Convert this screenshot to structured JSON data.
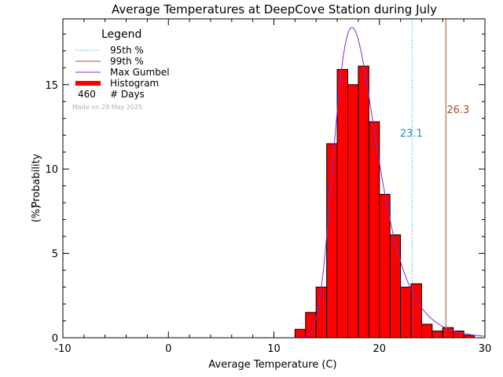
{
  "chart_data": {
    "type": "bar",
    "title": "Average Temperatures at DeepCove Station during July",
    "xlabel": "Average Temperature (C)",
    "ylabel": "Probability",
    "ylabel_unit": "(%)",
    "xlim": [
      -10,
      30
    ],
    "ylim": [
      0,
      18.9
    ],
    "xticks": [
      -10,
      0,
      10,
      20,
      30
    ],
    "yticks": [
      0,
      5,
      10,
      15
    ],
    "grid": false,
    "legend": {
      "title": "Legend",
      "position": "top-left",
      "items": [
        {
          "label": "95th %",
          "style": "dotted",
          "color": "#1f8fd6"
        },
        {
          "label": "99th %",
          "style": "solid",
          "color": "#a0522d"
        },
        {
          "label": "Max Gumbel",
          "style": "solid",
          "color": "#7b2fd0"
        },
        {
          "label": "Histogram",
          "style": "thick",
          "color": "#ff0000"
        }
      ],
      "days_count": "460",
      "days_label": "# Days"
    },
    "made_on": "Made on 29 May 2025",
    "percentiles": [
      {
        "name": "95th %",
        "value": 23.1,
        "label": "23.1",
        "color": "#1f8fd6"
      },
      {
        "name": "99th %",
        "value": 26.3,
        "label": "26.3",
        "color": "#a0522d"
      }
    ],
    "histogram": {
      "bin_width": 1,
      "bin_starts": [
        12,
        13,
        14,
        15,
        16,
        17,
        18,
        19,
        20,
        21,
        22,
        23,
        24,
        25,
        26,
        27,
        28
      ],
      "values": [
        0.5,
        1.5,
        3.0,
        11.5,
        15.9,
        15.0,
        16.1,
        12.8,
        8.5,
        6.1,
        3.0,
        3.2,
        0.8,
        0.4,
        0.6,
        0.4,
        0.15
      ],
      "fill_color": "#ff0000"
    },
    "gumbel": {
      "name": "Max Gumbel",
      "mu": 17.4,
      "beta": 2.0,
      "color": "#7b2fd0"
    }
  }
}
